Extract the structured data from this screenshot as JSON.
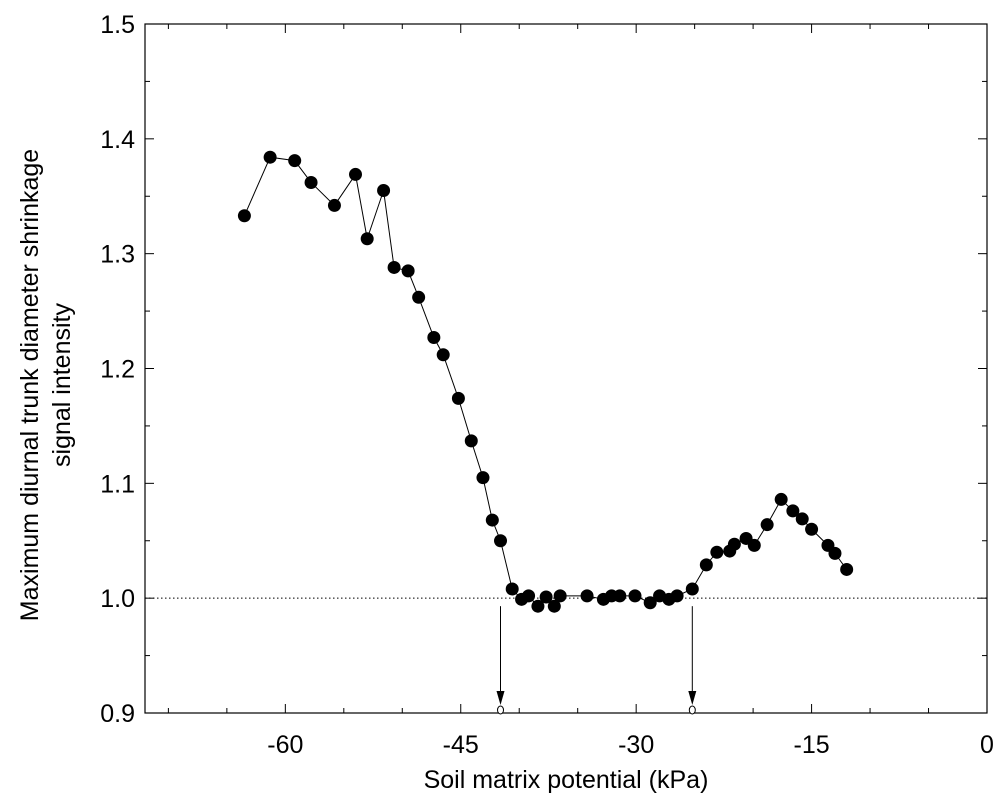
{
  "chart_data": {
    "type": "scatter",
    "title": "",
    "xlabel": "Soil matrix potential (kPa)",
    "ylabel_lines": [
      "Maximum diurnal trunk diameter shrinkage",
      "signal intensity"
    ],
    "xlim": [
      -72,
      0
    ],
    "ylim": [
      0.9,
      1.5
    ],
    "x_ticks": [
      -60,
      -45,
      -30,
      -15,
      0
    ],
    "x_tick_labels": [
      "-60",
      "-45",
      "-30",
      "-15",
      "0"
    ],
    "x_minor_step": 5,
    "y_ticks": [
      0.9,
      1.0,
      1.1,
      1.2,
      1.3,
      1.4,
      1.5
    ],
    "y_tick_labels": [
      "0.9",
      "1.0",
      "1.1",
      "1.2",
      "1.3",
      "1.4",
      "1.5"
    ],
    "grid": false,
    "legend": "none",
    "reference_line": {
      "y": 1.0,
      "style": "dotted"
    },
    "threshold_arrows_x": [
      -41.6,
      -25.2
    ],
    "series": [
      {
        "marker": "filled-circle",
        "color": "#000000",
        "connected": true,
        "x": [
          -63.5,
          -61.3,
          -59.2,
          -57.8,
          -55.8,
          -54.0,
          -53.0,
          -51.6,
          -50.7,
          -49.5,
          -48.6,
          -47.3,
          -46.5,
          -45.2,
          -44.1,
          -43.1,
          -42.3,
          -41.6,
          -40.6,
          -39.8,
          -39.2,
          -38.4,
          -37.7,
          -37.0,
          -36.5,
          -34.2,
          -32.8,
          -32.1,
          -31.4,
          -30.1,
          -28.8,
          -28.0,
          -27.2,
          -26.5,
          -25.2,
          -24.0,
          -23.1,
          -22.0,
          -21.6,
          -20.6,
          -19.9,
          -18.8,
          -17.6,
          -16.6,
          -15.8,
          -15.0,
          -13.6,
          -13.0,
          -12.0
        ],
        "y": [
          1.333,
          1.384,
          1.381,
          1.362,
          1.342,
          1.369,
          1.313,
          1.355,
          1.288,
          1.285,
          1.262,
          1.227,
          1.212,
          1.174,
          1.137,
          1.105,
          1.068,
          1.05,
          1.008,
          0.999,
          1.002,
          0.993,
          1.001,
          0.993,
          1.002,
          1.002,
          0.999,
          1.002,
          1.002,
          1.002,
          0.996,
          1.002,
          0.999,
          1.002,
          1.008,
          1.029,
          1.04,
          1.041,
          1.047,
          1.052,
          1.046,
          1.064,
          1.086,
          1.076,
          1.069,
          1.06,
          1.046,
          1.039,
          1.025
        ]
      }
    ]
  }
}
